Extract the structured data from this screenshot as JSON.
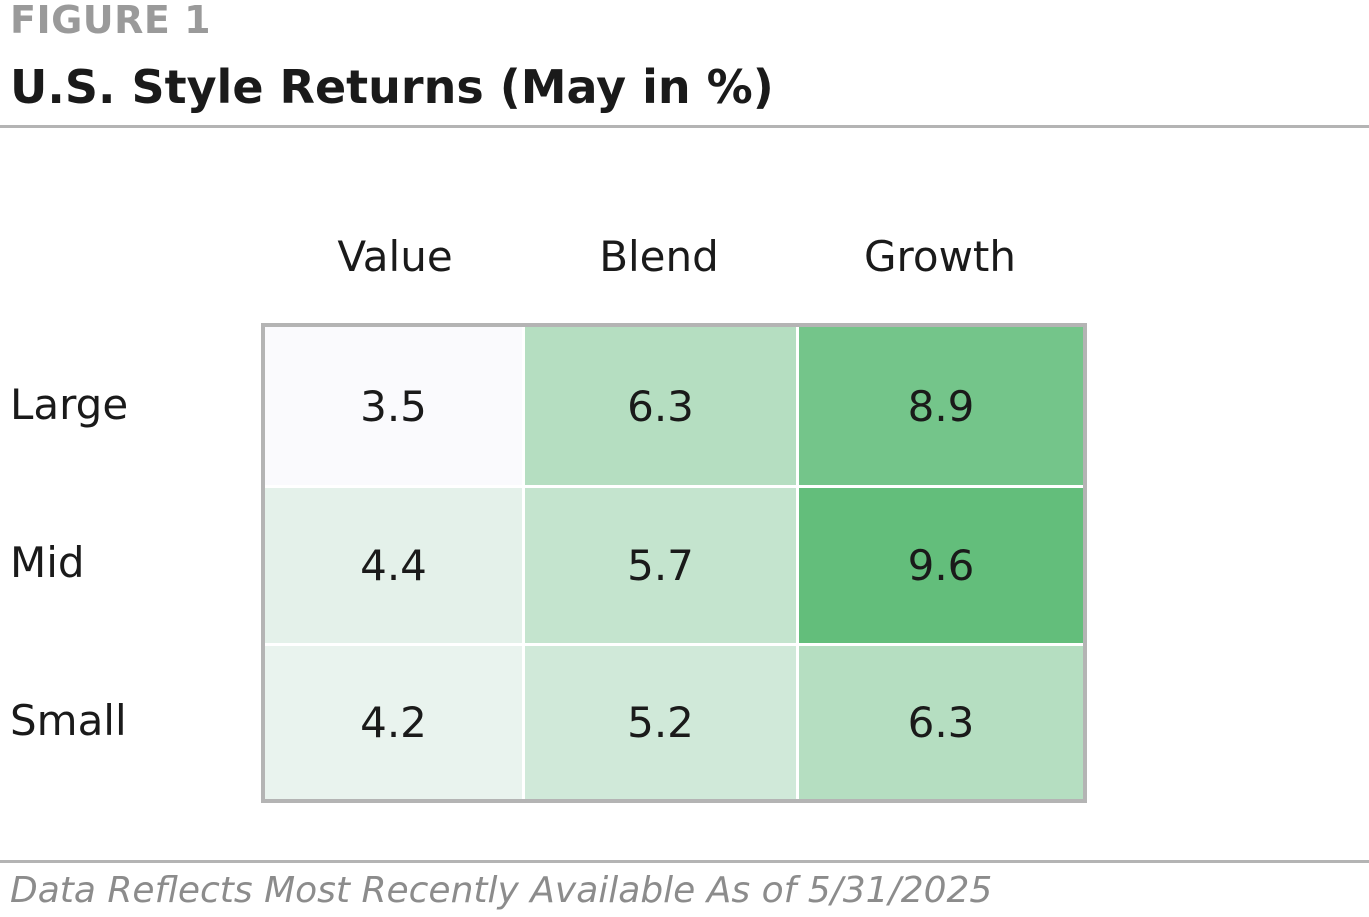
{
  "figure": {
    "label": "FIGURE 1",
    "title": "U.S. Style Returns (May in %)",
    "footnote": "Data Reflects Most Recently Available As of 5/31/2025"
  },
  "chart_data": {
    "type": "heatmap",
    "title": "U.S. Style Returns (May in %)",
    "columns": [
      "Value",
      "Blend",
      "Growth"
    ],
    "rows": [
      "Large",
      "Mid",
      "Small"
    ],
    "values": [
      [
        3.5,
        6.3,
        8.9
      ],
      [
        4.4,
        5.7,
        9.6
      ],
      [
        4.2,
        5.2,
        6.3
      ]
    ],
    "value_labels": [
      [
        "3.5",
        "6.3",
        "8.9"
      ],
      [
        "4.4",
        "5.7",
        "9.6"
      ],
      [
        "4.2",
        "5.2",
        "6.3"
      ]
    ],
    "colors": {
      "low": "#fafafd",
      "high": "#63be7b",
      "border": "#b4b4b4"
    }
  }
}
